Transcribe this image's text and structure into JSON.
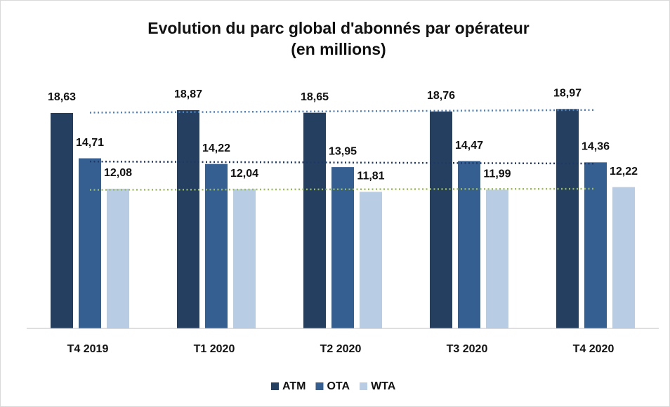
{
  "chart_data": {
    "type": "bar",
    "title": "Evolution du parc global d'abonnés par opérateur",
    "subtitle": "(en millions)",
    "categories": [
      "T4 2019",
      "T1 2020",
      "T2 2020",
      "T3 2020",
      "T4 2020"
    ],
    "series": [
      {
        "name": "ATM",
        "color": "#243f60",
        "trend_color": "#4f81bd",
        "values": [
          18.63,
          18.87,
          18.65,
          18.76,
          18.97
        ],
        "value_labels": [
          "18,63",
          "18,87",
          "18,65",
          "18,76",
          "18,97"
        ]
      },
      {
        "name": "OTA",
        "color": "#365f91",
        "trend_color": "#1f3864",
        "values": [
          14.71,
          14.22,
          13.95,
          14.47,
          14.36
        ],
        "value_labels": [
          "14,71",
          "14,22",
          "13,95",
          "14,47",
          "14,36"
        ]
      },
      {
        "name": "WTA",
        "color": "#b8cce4",
        "trend_color": "#9bbb59",
        "values": [
          12.08,
          12.04,
          11.81,
          11.99,
          12.22
        ],
        "value_labels": [
          "12,08",
          "12,04",
          "11,81",
          "11,99",
          "12,22"
        ]
      }
    ],
    "ylim": [
      0,
      20
    ],
    "trendlines": true,
    "legend": "bottom"
  }
}
